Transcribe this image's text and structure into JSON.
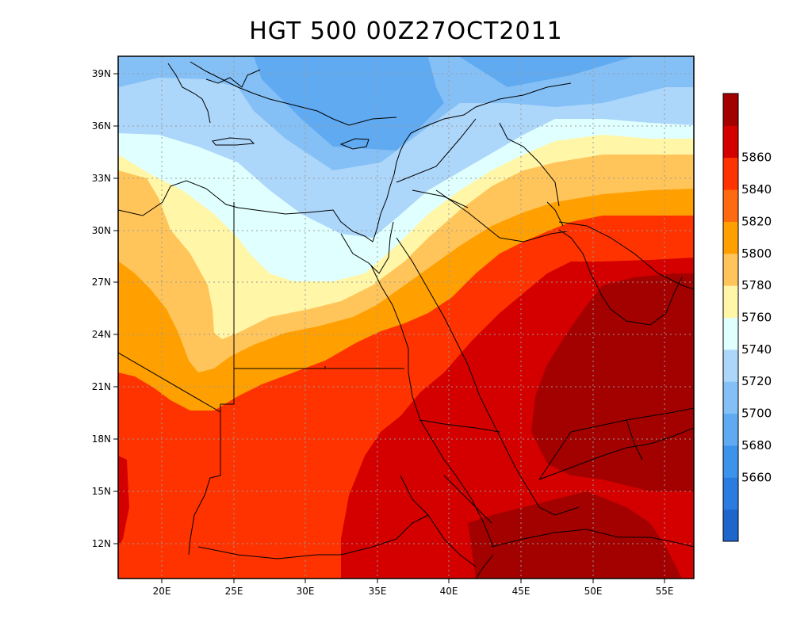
{
  "title": "HGT 500 00Z27OCT2011",
  "map": {
    "lon_range": [
      17,
      57
    ],
    "lat_range": [
      10,
      40
    ],
    "lon_ticks": [
      "20E",
      "25E",
      "30E",
      "35E",
      "40E",
      "45E",
      "50E",
      "55E"
    ],
    "lat_ticks": [
      "12N",
      "15N",
      "18N",
      "21N",
      "24N",
      "27N",
      "30N",
      "33N",
      "36N",
      "39N"
    ],
    "grid": true,
    "projection": "lat-lon"
  },
  "colorbar": {
    "colors": [
      "#1f66cc",
      "#2b7ce0",
      "#3c93ec",
      "#60aaf2",
      "#84c0f6",
      "#acd6fa",
      "#e0ffff",
      "#fff6a8",
      "#ffc55a",
      "#ffa000",
      "#ff6a10",
      "#ff3300",
      "#d40000",
      "#a30000"
    ],
    "labels": [
      "5660",
      "5680",
      "5700",
      "5720",
      "5740",
      "5760",
      "5780",
      "5800",
      "5820",
      "5840",
      "5860"
    ]
  }
}
